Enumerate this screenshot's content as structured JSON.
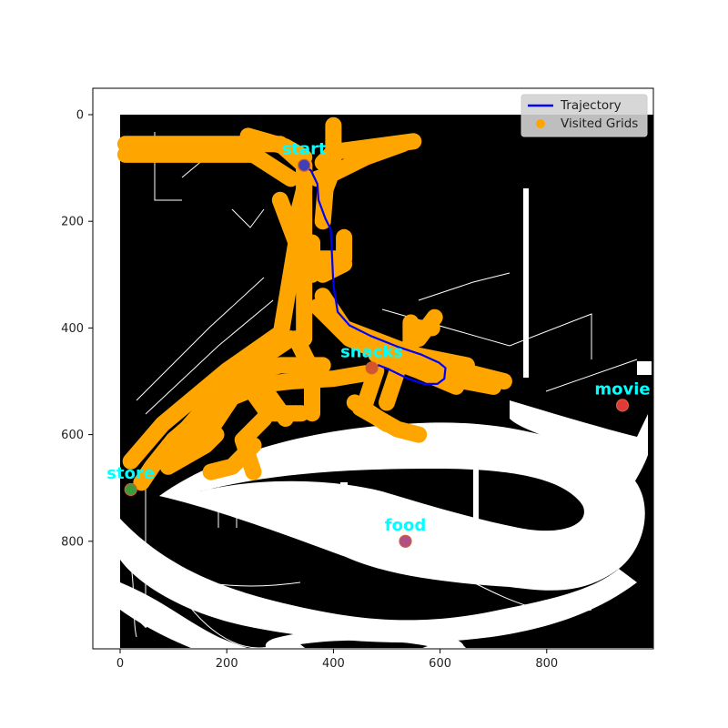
{
  "chart_data": {
    "type": "scatter",
    "title": "",
    "xlabel": "",
    "ylabel": "",
    "xlim": [
      -50,
      1000
    ],
    "ylim": [
      1000,
      -50
    ],
    "y_inverted": true,
    "xticks": [
      0,
      200,
      400,
      600,
      800
    ],
    "yticks": [
      0,
      200,
      400,
      600,
      800
    ],
    "grid": false,
    "legend": {
      "position": "upper-right",
      "entries": [
        {
          "label": "Trajectory",
          "marker": "line",
          "color": "#0000ff"
        },
        {
          "label": "Visited Grids",
          "marker": "circle",
          "color": "#ffa500"
        }
      ]
    },
    "background_map": {
      "obstacle_color": "#000000",
      "free_color": "#ffffff",
      "extent": [
        0,
        1000,
        0,
        1000
      ]
    },
    "places": [
      {
        "name": "start",
        "x": 345,
        "y": 95,
        "marker_color": "#3f3fb8",
        "label_color": "#00ffff"
      },
      {
        "name": "snacks",
        "x": 472,
        "y": 475,
        "marker_color": "#d2552b",
        "label_color": "#00ffff"
      },
      {
        "name": "movie",
        "x": 942,
        "y": 545,
        "marker_color": "#e03a3a",
        "label_color": "#00ffff"
      },
      {
        "name": "store",
        "x": 20,
        "y": 703,
        "marker_color": "#3c9a3c",
        "label_color": "#00ffff"
      },
      {
        "name": "food",
        "x": 535,
        "y": 800,
        "marker_color": "#b0508a",
        "label_color": "#00ffff"
      }
    ],
    "series": [
      {
        "name": "Trajectory",
        "type": "line",
        "color": "#0000ff",
        "points": [
          [
            345,
            95
          ],
          [
            358,
            105
          ],
          [
            370,
            130
          ],
          [
            372,
            160
          ],
          [
            385,
            195
          ],
          [
            395,
            215
          ],
          [
            400,
            320
          ],
          [
            408,
            370
          ],
          [
            430,
            395
          ],
          [
            470,
            415
          ],
          [
            520,
            435
          ],
          [
            565,
            450
          ],
          [
            598,
            465
          ],
          [
            610,
            475
          ],
          [
            608,
            495
          ],
          [
            595,
            505
          ],
          [
            570,
            505
          ],
          [
            540,
            495
          ],
          [
            505,
            478
          ],
          [
            485,
            470
          ],
          [
            472,
            475
          ]
        ]
      },
      {
        "name": "Visited Grids",
        "type": "scatter",
        "color": "#ffa500",
        "paths": [
          [
            [
              10,
              55
            ],
            [
              300,
              55
            ],
            [
              345,
              95
            ]
          ],
          [
            [
              10,
              75
            ],
            [
              250,
              75
            ],
            [
              320,
              120
            ]
          ],
          [
            [
              240,
              40
            ],
            [
              310,
              60
            ],
            [
              345,
              80
            ]
          ],
          [
            [
              345,
              95
            ],
            [
              345,
              200
            ],
            [
              345,
              420
            ]
          ],
          [
            [
              300,
              160
            ],
            [
              330,
              240
            ],
            [
              300,
              420
            ]
          ],
          [
            [
              345,
              95
            ],
            [
              345,
              140
            ],
            [
              330,
              200
            ]
          ],
          [
            [
              400,
              20
            ],
            [
              400,
              100
            ],
            [
              385,
              140
            ],
            [
              380,
              200
            ]
          ],
          [
            [
              370,
              120
            ],
            [
              400,
              110
            ],
            [
              460,
              80
            ],
            [
              530,
              55
            ]
          ],
          [
            [
              380,
              90
            ],
            [
              400,
              70
            ],
            [
              550,
              50
            ]
          ],
          [
            [
              360,
              240
            ],
            [
              360,
              300
            ]
          ],
          [
            [
              360,
              270
            ],
            [
              420,
              270
            ],
            [
              420,
              230
            ]
          ],
          [
            [
              380,
              300
            ],
            [
              420,
              280
            ]
          ],
          [
            [
              380,
              340
            ],
            [
              420,
              400
            ],
            [
              550,
              450
            ],
            [
              650,
              470
            ]
          ],
          [
            [
              370,
              360
            ],
            [
              430,
              420
            ],
            [
              520,
              460
            ],
            [
              620,
              495
            ],
            [
              700,
              510
            ]
          ],
          [
            [
              440,
              420
            ],
            [
              560,
              460
            ],
            [
              720,
              500
            ]
          ],
          [
            [
              480,
              450
            ],
            [
              560,
              480
            ],
            [
              630,
              510
            ]
          ],
          [
            [
              545,
              390
            ],
            [
              545,
              460
            ]
          ],
          [
            [
              545,
              400
            ],
            [
              585,
              400
            ]
          ],
          [
            [
              300,
              410
            ],
            [
              200,
              480
            ],
            [
              80,
              580
            ],
            [
              20,
              650
            ]
          ],
          [
            [
              320,
              420
            ],
            [
              230,
              480
            ],
            [
              150,
              560
            ],
            [
              80,
              640
            ]
          ],
          [
            [
              170,
              550
            ],
            [
              100,
              610
            ],
            [
              60,
              660
            ],
            [
              40,
              690
            ]
          ],
          [
            [
              220,
              480
            ],
            [
              270,
              550
            ]
          ],
          [
            [
              260,
              500
            ],
            [
              310,
              570
            ]
          ],
          [
            [
              330,
              420
            ],
            [
              360,
              480
            ],
            [
              360,
              560
            ]
          ],
          [
            [
              220,
              490
            ],
            [
              300,
              470
            ],
            [
              380,
              470
            ]
          ],
          [
            [
              230,
              510
            ],
            [
              320,
              500
            ],
            [
              400,
              495
            ],
            [
              460,
              485
            ]
          ],
          [
            [
              80,
              640
            ],
            [
              120,
              610
            ],
            [
              170,
              590
            ]
          ],
          [
            [
              170,
              590
            ],
            [
              210,
              530
            ],
            [
              260,
              510
            ]
          ],
          [
            [
              180,
              600
            ],
            [
              160,
              620
            ],
            [
              90,
              660
            ]
          ],
          [
            [
              270,
              570
            ],
            [
              230,
              610
            ],
            [
              250,
              670
            ]
          ],
          [
            [
              250,
              620
            ],
            [
              210,
              660
            ],
            [
              170,
              670
            ]
          ],
          [
            [
              280,
              560
            ],
            [
              340,
              560
            ]
          ],
          [
            [
              440,
              540
            ],
            [
              500,
              580
            ]
          ],
          [
            [
              450,
              550
            ],
            [
              520,
              590
            ],
            [
              560,
              600
            ]
          ],
          [
            [
              480,
              480
            ],
            [
              460,
              540
            ]
          ],
          [
            [
              520,
              480
            ],
            [
              500,
              540
            ]
          ],
          [
            [
              590,
              380
            ],
            [
              560,
              420
            ]
          ]
        ]
      }
    ]
  }
}
